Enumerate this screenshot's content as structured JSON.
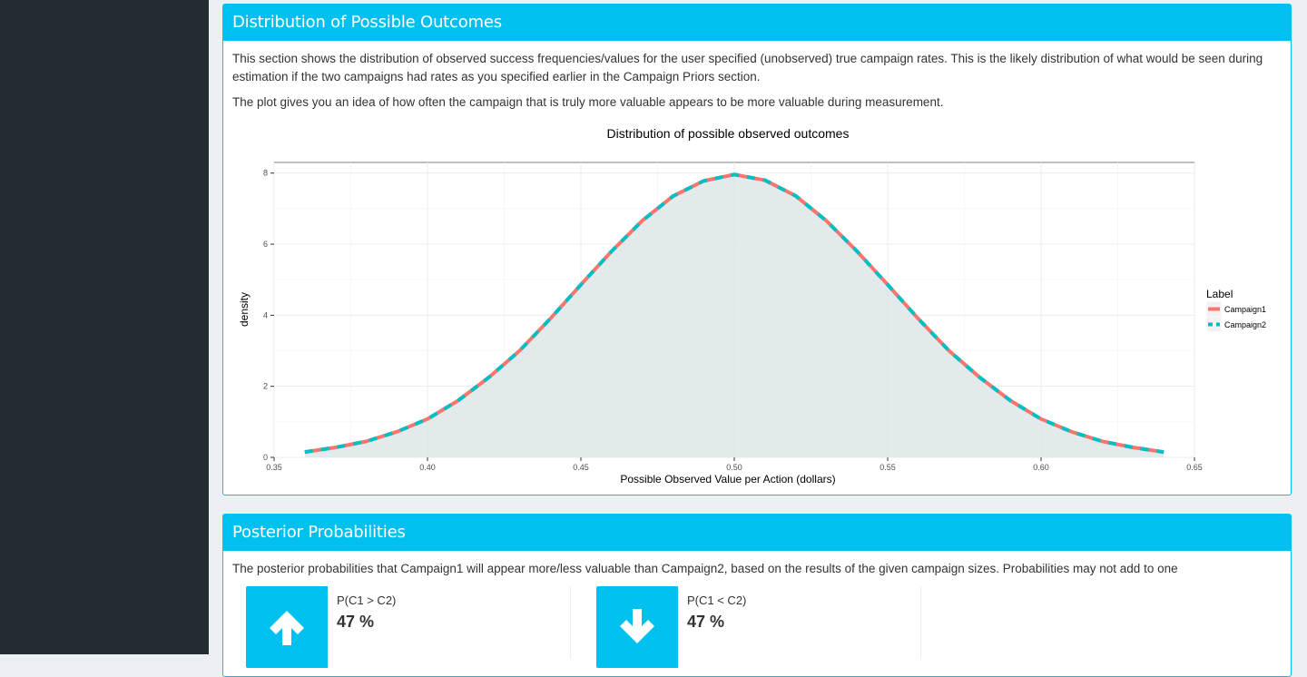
{
  "sidebar": {},
  "dist_box": {
    "title": "Distribution of Possible Outcomes",
    "para1": "This section shows the distribution of observed success frequencies/values for the user specified (unobserved) true campaign rates. This is the likely distribution of what would be seen during estimation if the two campaigns had rates as you specified earlier in the Campaign Priors section.",
    "para2": "The plot gives you an idea of how often the campaign that is truly more valuable appears to be more valuable during measurement."
  },
  "chart_data": {
    "type": "line",
    "title": "Distribution of possible observed outcomes",
    "xlabel": "Possible Observed Value per Action (dollars)",
    "ylabel": "density",
    "xlim": [
      0.35,
      0.65
    ],
    "ylim": [
      0,
      8.3
    ],
    "x_ticks": [
      "0.35",
      "0.40",
      "0.45",
      "0.50",
      "0.55",
      "0.60",
      "0.65"
    ],
    "y_ticks": [
      "0",
      "2",
      "4",
      "6",
      "8"
    ],
    "grid": true,
    "legend_title": "Label",
    "legend_position": "right",
    "x": [
      0.36,
      0.37,
      0.38,
      0.39,
      0.4,
      0.41,
      0.42,
      0.43,
      0.44,
      0.45,
      0.46,
      0.47,
      0.48,
      0.49,
      0.5,
      0.51,
      0.52,
      0.53,
      0.54,
      0.55,
      0.56,
      0.57,
      0.58,
      0.59,
      0.6,
      0.61,
      0.62,
      0.63,
      0.64
    ],
    "series": [
      {
        "name": "Campaign1",
        "color": "#f8766d",
        "values": [
          0.15,
          0.28,
          0.45,
          0.72,
          1.08,
          1.6,
          2.25,
          3.0,
          3.9,
          4.86,
          5.8,
          6.66,
          7.35,
          7.78,
          7.96,
          7.8,
          7.36,
          6.66,
          5.8,
          4.86,
          3.9,
          3.0,
          2.25,
          1.6,
          1.08,
          0.72,
          0.45,
          0.28,
          0.15
        ]
      },
      {
        "name": "Campaign2",
        "color": "#00bfc4",
        "values": [
          0.15,
          0.28,
          0.45,
          0.72,
          1.08,
          1.6,
          2.25,
          3.0,
          3.9,
          4.86,
          5.8,
          6.66,
          7.35,
          7.78,
          7.96,
          7.8,
          7.36,
          6.66,
          5.8,
          4.86,
          3.9,
          3.0,
          2.25,
          1.6,
          1.08,
          0.72,
          0.45,
          0.28,
          0.15
        ]
      }
    ]
  },
  "post_box": {
    "title": "Posterior Probabilities",
    "para": "The posterior probabilities that Campaign1 will appear more/less valuable than Campaign2, based on the results of the given campaign sizes. Probabilities may not add to one",
    "info": [
      {
        "label": "P(C1 > C2)",
        "value": "47 %",
        "icon": "arrow-up-icon"
      },
      {
        "label": "P(C1 < C2)",
        "value": "47 %",
        "icon": "arrow-down-icon"
      }
    ]
  },
  "colors": {
    "accent": "#00c0ef",
    "sidebar": "#222d32",
    "background": "#ecf0f5"
  }
}
